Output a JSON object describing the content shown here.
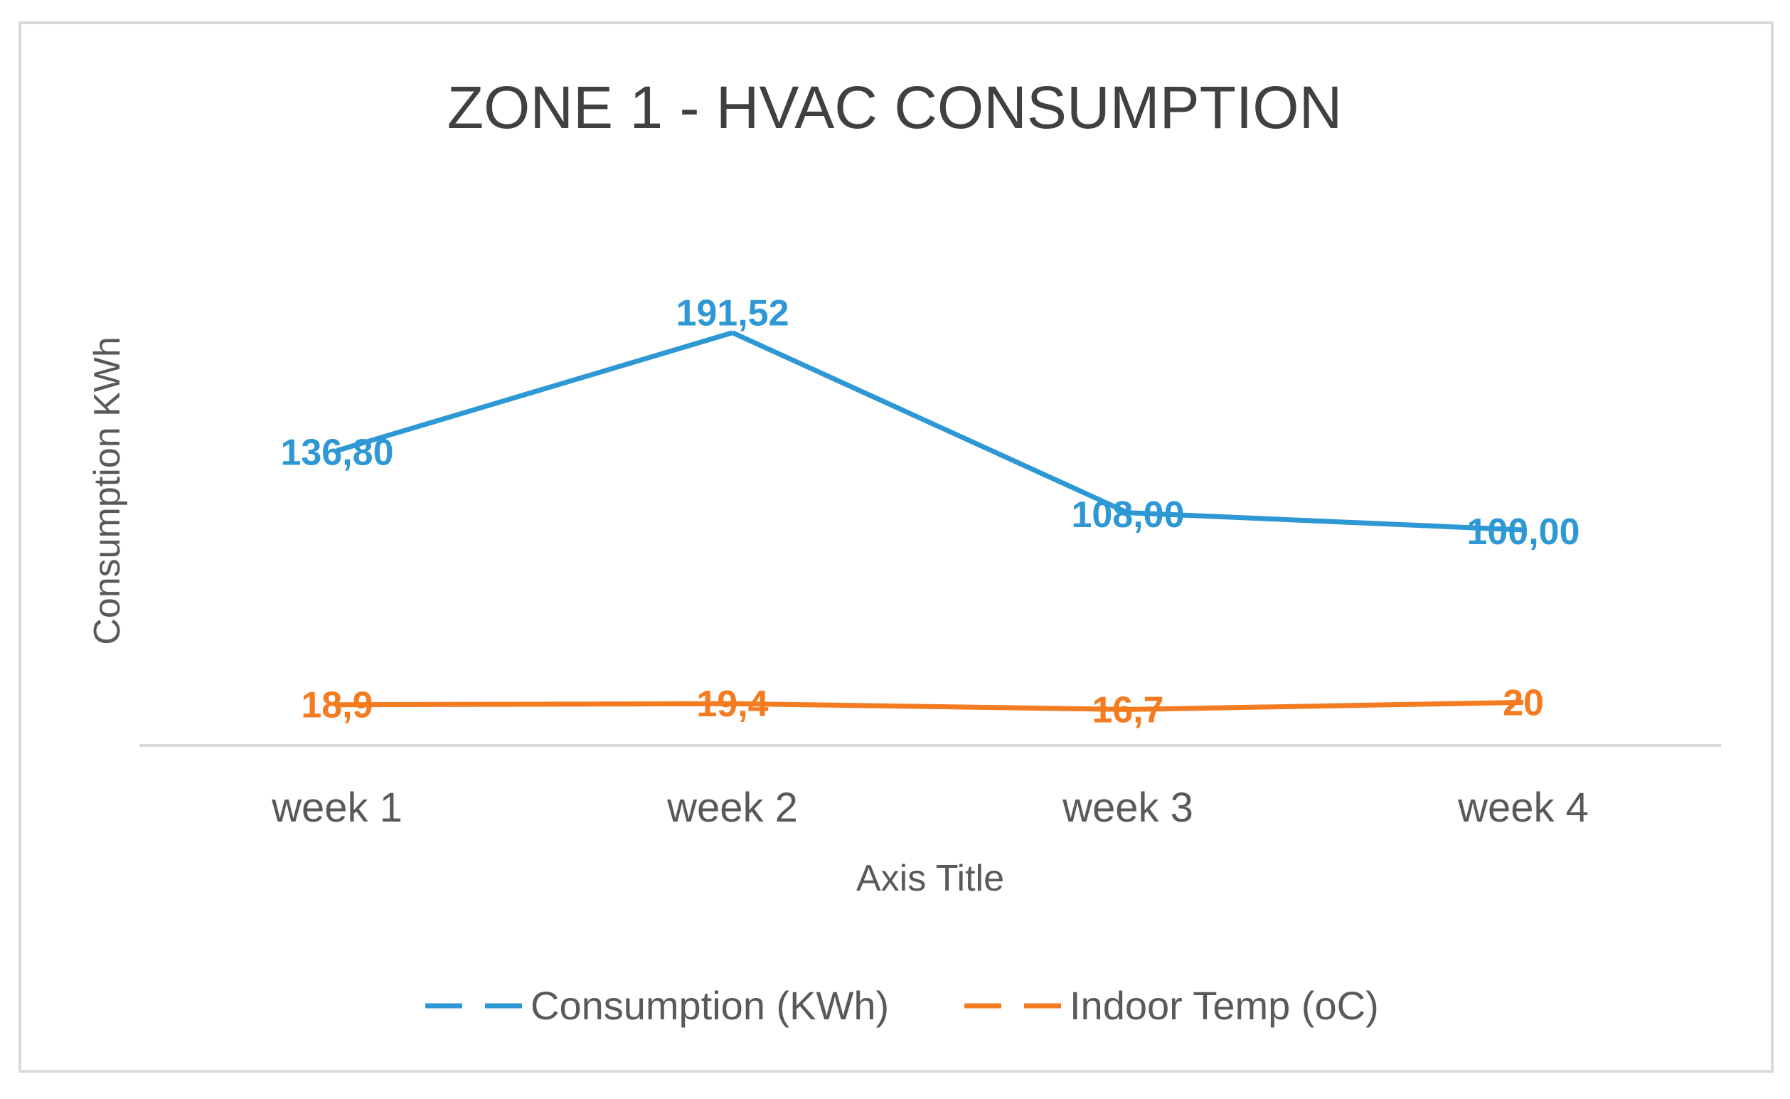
{
  "chart_data": {
    "type": "line",
    "title": "ZONE 1 - HVAC CONSUMPTION",
    "xlabel": "Axis Title",
    "ylabel": "Consumption KWh",
    "categories": [
      "week 1",
      "week 2",
      "week 3",
      "week 4"
    ],
    "ylim": [
      0,
      220
    ],
    "grid": false,
    "legend_position": "bottom",
    "series": [
      {
        "name": "Consumption (KWh)",
        "color": "#2E98D4",
        "values": [
          136.8,
          191.52,
          108.0,
          100.0
        ],
        "labels": [
          "136,80",
          "191,52",
          "108,00",
          "100,00"
        ]
      },
      {
        "name": "Indoor Temp (oC)",
        "color": "#F47B20",
        "values": [
          18.9,
          19.4,
          16.7,
          20
        ],
        "labels": [
          "18,9",
          "19,4",
          "16,7",
          "20"
        ]
      }
    ]
  }
}
